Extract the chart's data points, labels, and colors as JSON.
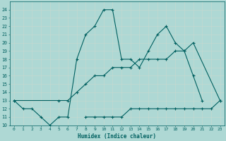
{
  "xlabel": "Humidex (Indice chaleur)",
  "x_values": [
    0,
    1,
    2,
    3,
    4,
    5,
    6,
    7,
    8,
    9,
    10,
    11,
    12,
    13,
    14,
    15,
    16,
    17,
    18,
    19,
    20,
    21,
    22,
    23
  ],
  "line1_x": [
    0,
    1,
    2,
    3,
    4,
    5,
    6,
    7,
    8,
    9,
    10,
    11,
    12,
    13,
    14,
    15,
    16,
    17,
    18,
    19,
    20,
    21
  ],
  "line1_y": [
    13,
    12,
    12,
    11,
    10,
    11,
    11,
    18,
    21,
    22,
    24,
    24,
    18,
    18,
    17,
    19,
    21,
    22,
    20,
    19,
    16,
    13
  ],
  "line2_x": [
    0,
    5,
    6,
    7,
    8,
    9,
    10,
    11,
    12,
    13,
    14,
    15,
    16,
    17,
    18,
    19,
    20,
    23
  ],
  "line2_y": [
    13,
    13,
    13,
    14,
    15,
    16,
    16,
    17,
    17,
    17,
    18,
    18,
    18,
    18,
    19,
    19,
    20,
    13
  ],
  "line3_x": [
    8,
    9,
    10,
    11,
    12,
    13,
    14,
    15,
    16,
    17,
    18,
    19,
    20,
    21,
    22,
    23
  ],
  "line3_y": [
    11,
    11,
    11,
    11,
    11,
    12,
    12,
    12,
    12,
    12,
    12,
    12,
    12,
    12,
    12,
    13
  ],
  "bg_color": "#aed8d4",
  "line_color": "#006060",
  "ylim": [
    10,
    25
  ],
  "xlim": [
    -0.5,
    23.5
  ],
  "yticks": [
    10,
    11,
    12,
    13,
    14,
    15,
    16,
    17,
    18,
    19,
    20,
    21,
    22,
    23,
    24
  ],
  "xticks": [
    0,
    1,
    2,
    3,
    4,
    5,
    6,
    7,
    8,
    9,
    10,
    11,
    12,
    13,
    14,
    15,
    16,
    17,
    18,
    19,
    20,
    21,
    22,
    23
  ]
}
